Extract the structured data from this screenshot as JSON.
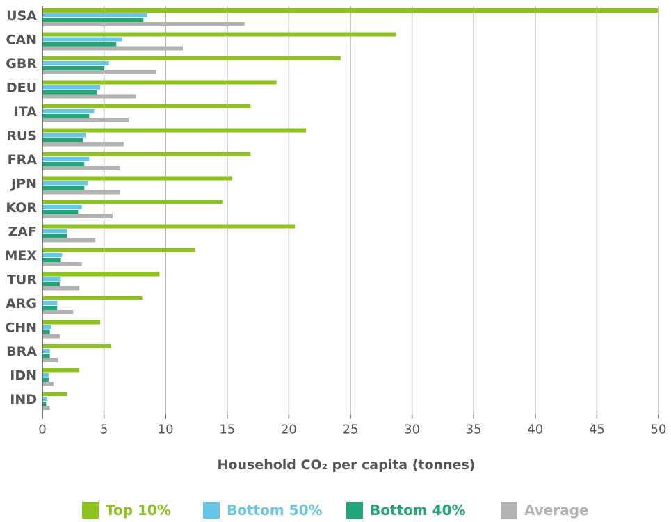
{
  "chart_data": {
    "type": "bar",
    "orientation": "horizontal",
    "categories": [
      "USA",
      "CAN",
      "GBR",
      "DEU",
      "ITA",
      "RUS",
      "FRA",
      "JPN",
      "KOR",
      "ZAF",
      "MEX",
      "TUR",
      "ARG",
      "CHN",
      "BRA",
      "IDN",
      "IND"
    ],
    "series": [
      {
        "name": "Top 10%",
        "color": "#8dc21f",
        "values": [
          50.0,
          28.7,
          24.2,
          19.0,
          16.9,
          21.4,
          16.9,
          15.4,
          14.6,
          20.5,
          12.4,
          9.5,
          8.1,
          4.7,
          5.6,
          3.0,
          2.0
        ]
      },
      {
        "name": "Bottom 50%",
        "color": "#67c6e6",
        "values": [
          8.5,
          6.5,
          5.4,
          4.7,
          4.2,
          3.5,
          3.8,
          3.7,
          3.2,
          2.0,
          1.6,
          1.5,
          1.2,
          0.7,
          0.6,
          0.5,
          0.4
        ]
      },
      {
        "name": "Bottom 40%",
        "color": "#21a677",
        "values": [
          8.2,
          6.0,
          5.0,
          4.4,
          3.8,
          3.3,
          3.4,
          3.4,
          2.9,
          2.0,
          1.5,
          1.4,
          1.2,
          0.6,
          0.6,
          0.5,
          0.3
        ]
      },
      {
        "name": "Average",
        "color": "#b2b2b2",
        "values": [
          16.4,
          11.4,
          9.2,
          7.6,
          7.0,
          6.6,
          6.3,
          6.3,
          5.7,
          4.3,
          3.2,
          3.0,
          2.5,
          1.4,
          1.3,
          0.9,
          0.6
        ]
      }
    ],
    "xlim": [
      0,
      50
    ],
    "xticks": [
      0,
      5,
      10,
      15,
      20,
      25,
      30,
      35,
      40,
      45,
      50
    ],
    "xlabel": "Household CO₂ per capita (tonnes)",
    "grid": "vertical",
    "legend_position": "bottom"
  },
  "colors": {
    "grid": "#b4b4b4",
    "axis": "#555555",
    "text": "#555555"
  }
}
